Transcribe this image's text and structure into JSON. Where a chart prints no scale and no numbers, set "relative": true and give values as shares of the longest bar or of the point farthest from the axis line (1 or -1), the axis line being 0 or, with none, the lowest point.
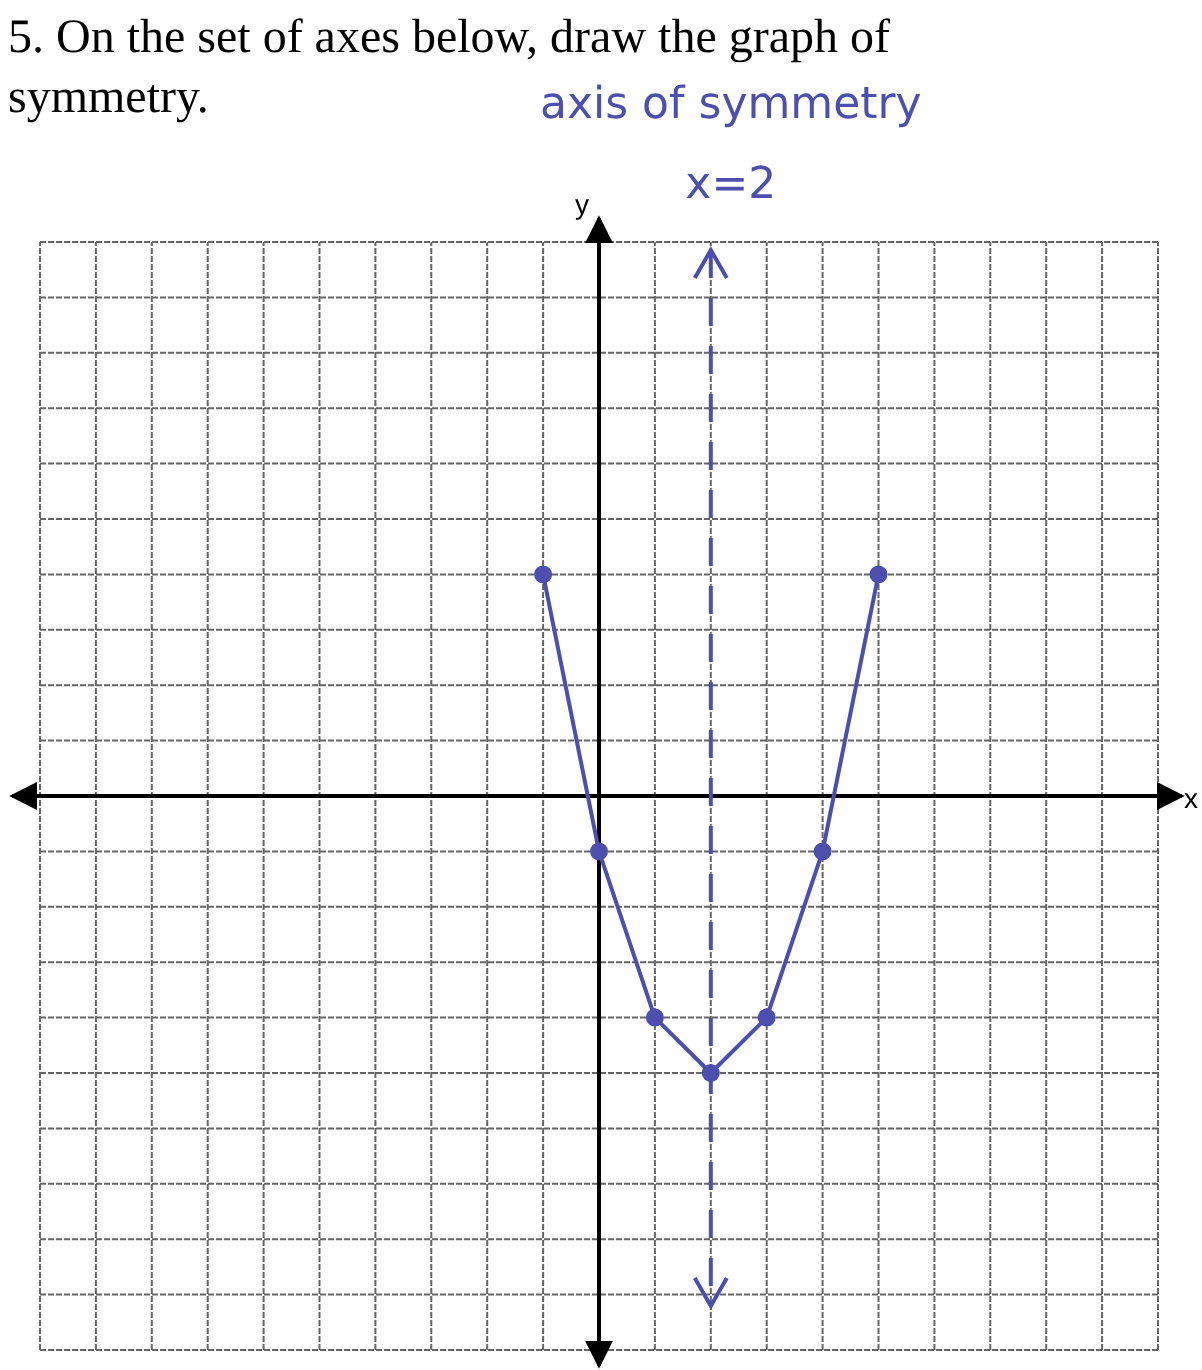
{
  "chart_data": {
    "type": "line",
    "title": "5. On the set of axes below, draw the graph of",
    "subtitle": "symmetry.",
    "xlabel": "x",
    "relative": true,
    "grid": true,
    "marker": "circle",
    "line_style": "solid",
    "categories": [
      null,
      null,
      null,
      null,
      null,
      null,
      null,
      null,
      null,
      null,
      null,
      null,
      null,
      null,
      null,
      null,
      null,
      null,
      null,
      null,
      null
    ],
    "series": [
      {
        "color": "#4c4fae",
        "values": [
          null,
          null,
          null,
          null,
          null,
          null,
          null,
          null,
          null,
          0.8,
          -0.2,
          -0.8,
          -1,
          -0.8,
          -0.2,
          0.8,
          null,
          null,
          null,
          null,
          null
        ]
      }
    ],
    "annotations": [
      "y",
      "axis of symmetry",
      "x=2"
    ]
  }
}
